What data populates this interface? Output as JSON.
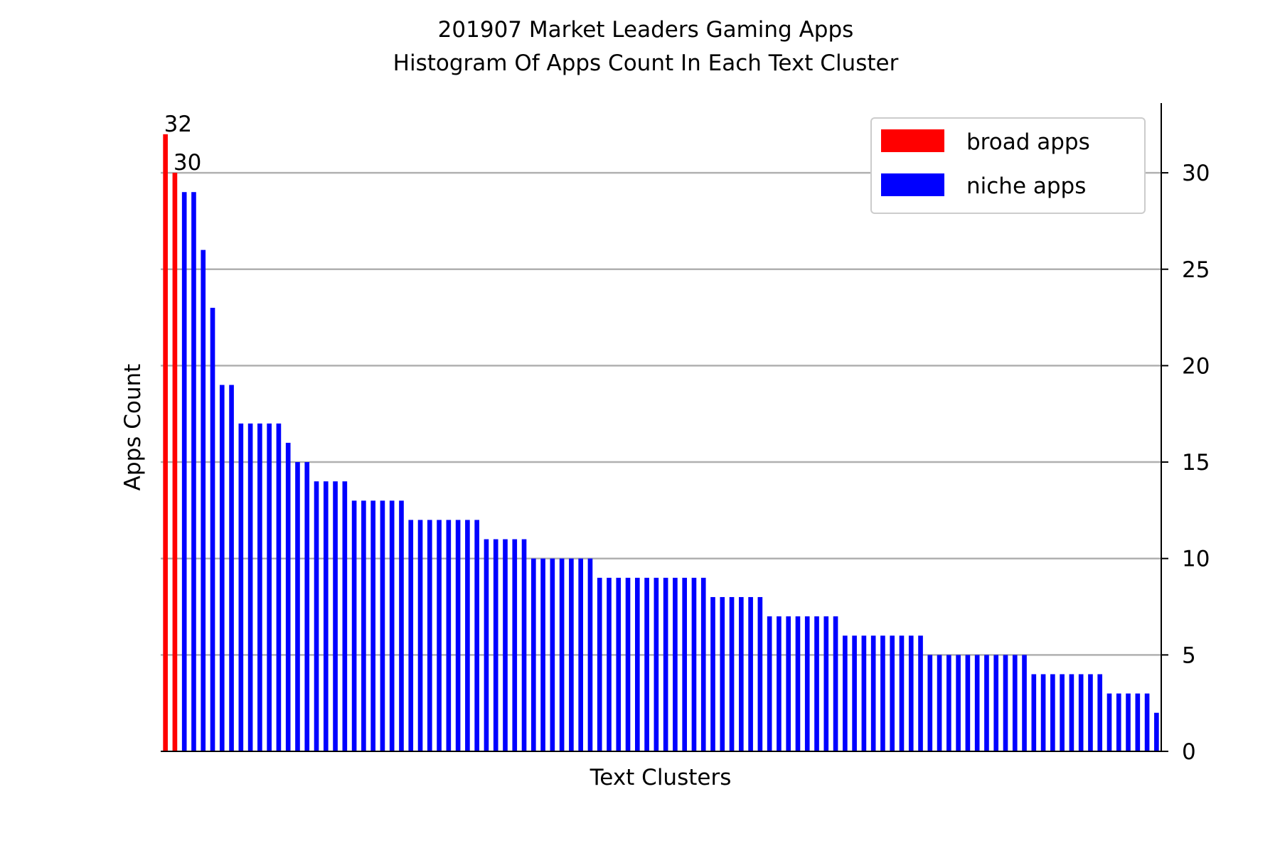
{
  "chart_data": {
    "type": "bar",
    "title_line1": "201907 Market Leaders Gaming Apps",
    "title_line2": "Histogram Of Apps Count In Each Text Cluster",
    "xlabel": "Text Clusters",
    "ylabel": "Apps Count",
    "y_axis_side": "right",
    "ylim": [
      0,
      33
    ],
    "yticks": [
      0,
      5,
      10,
      15,
      20,
      25,
      30
    ],
    "grid": "horizontal",
    "legend": {
      "position": "top-right",
      "entries": [
        "broad apps",
        "niche apps"
      ]
    },
    "colors": {
      "broad apps": "#ff0000",
      "niche apps": "#0000ff",
      "grid": "#b0b0b0"
    },
    "series": [
      {
        "name": "broad apps",
        "values": [
          32,
          30
        ]
      },
      {
        "name": "niche apps",
        "values": [
          29,
          29,
          26,
          23,
          19,
          19,
          17,
          17,
          17,
          17,
          17,
          16,
          15,
          15,
          14,
          14,
          14,
          14,
          13,
          13,
          13,
          13,
          13,
          13,
          12,
          12,
          12,
          12,
          12,
          12,
          12,
          12,
          11,
          11,
          11,
          11,
          11,
          10,
          10,
          10,
          10,
          10,
          10,
          10,
          9,
          9,
          9,
          9,
          9,
          9,
          9,
          9,
          9,
          9,
          9,
          9,
          8,
          8,
          8,
          8,
          8,
          8,
          7,
          7,
          7,
          7,
          7,
          7,
          7,
          7,
          6,
          6,
          6,
          6,
          6,
          6,
          6,
          6,
          6,
          5,
          5,
          5,
          5,
          5,
          5,
          5,
          5,
          5,
          5,
          5,
          4,
          4,
          4,
          4,
          4,
          4,
          4,
          4,
          3,
          3,
          3,
          3,
          3,
          2
        ]
      }
    ],
    "data_labels": [
      "32",
      "30"
    ]
  }
}
